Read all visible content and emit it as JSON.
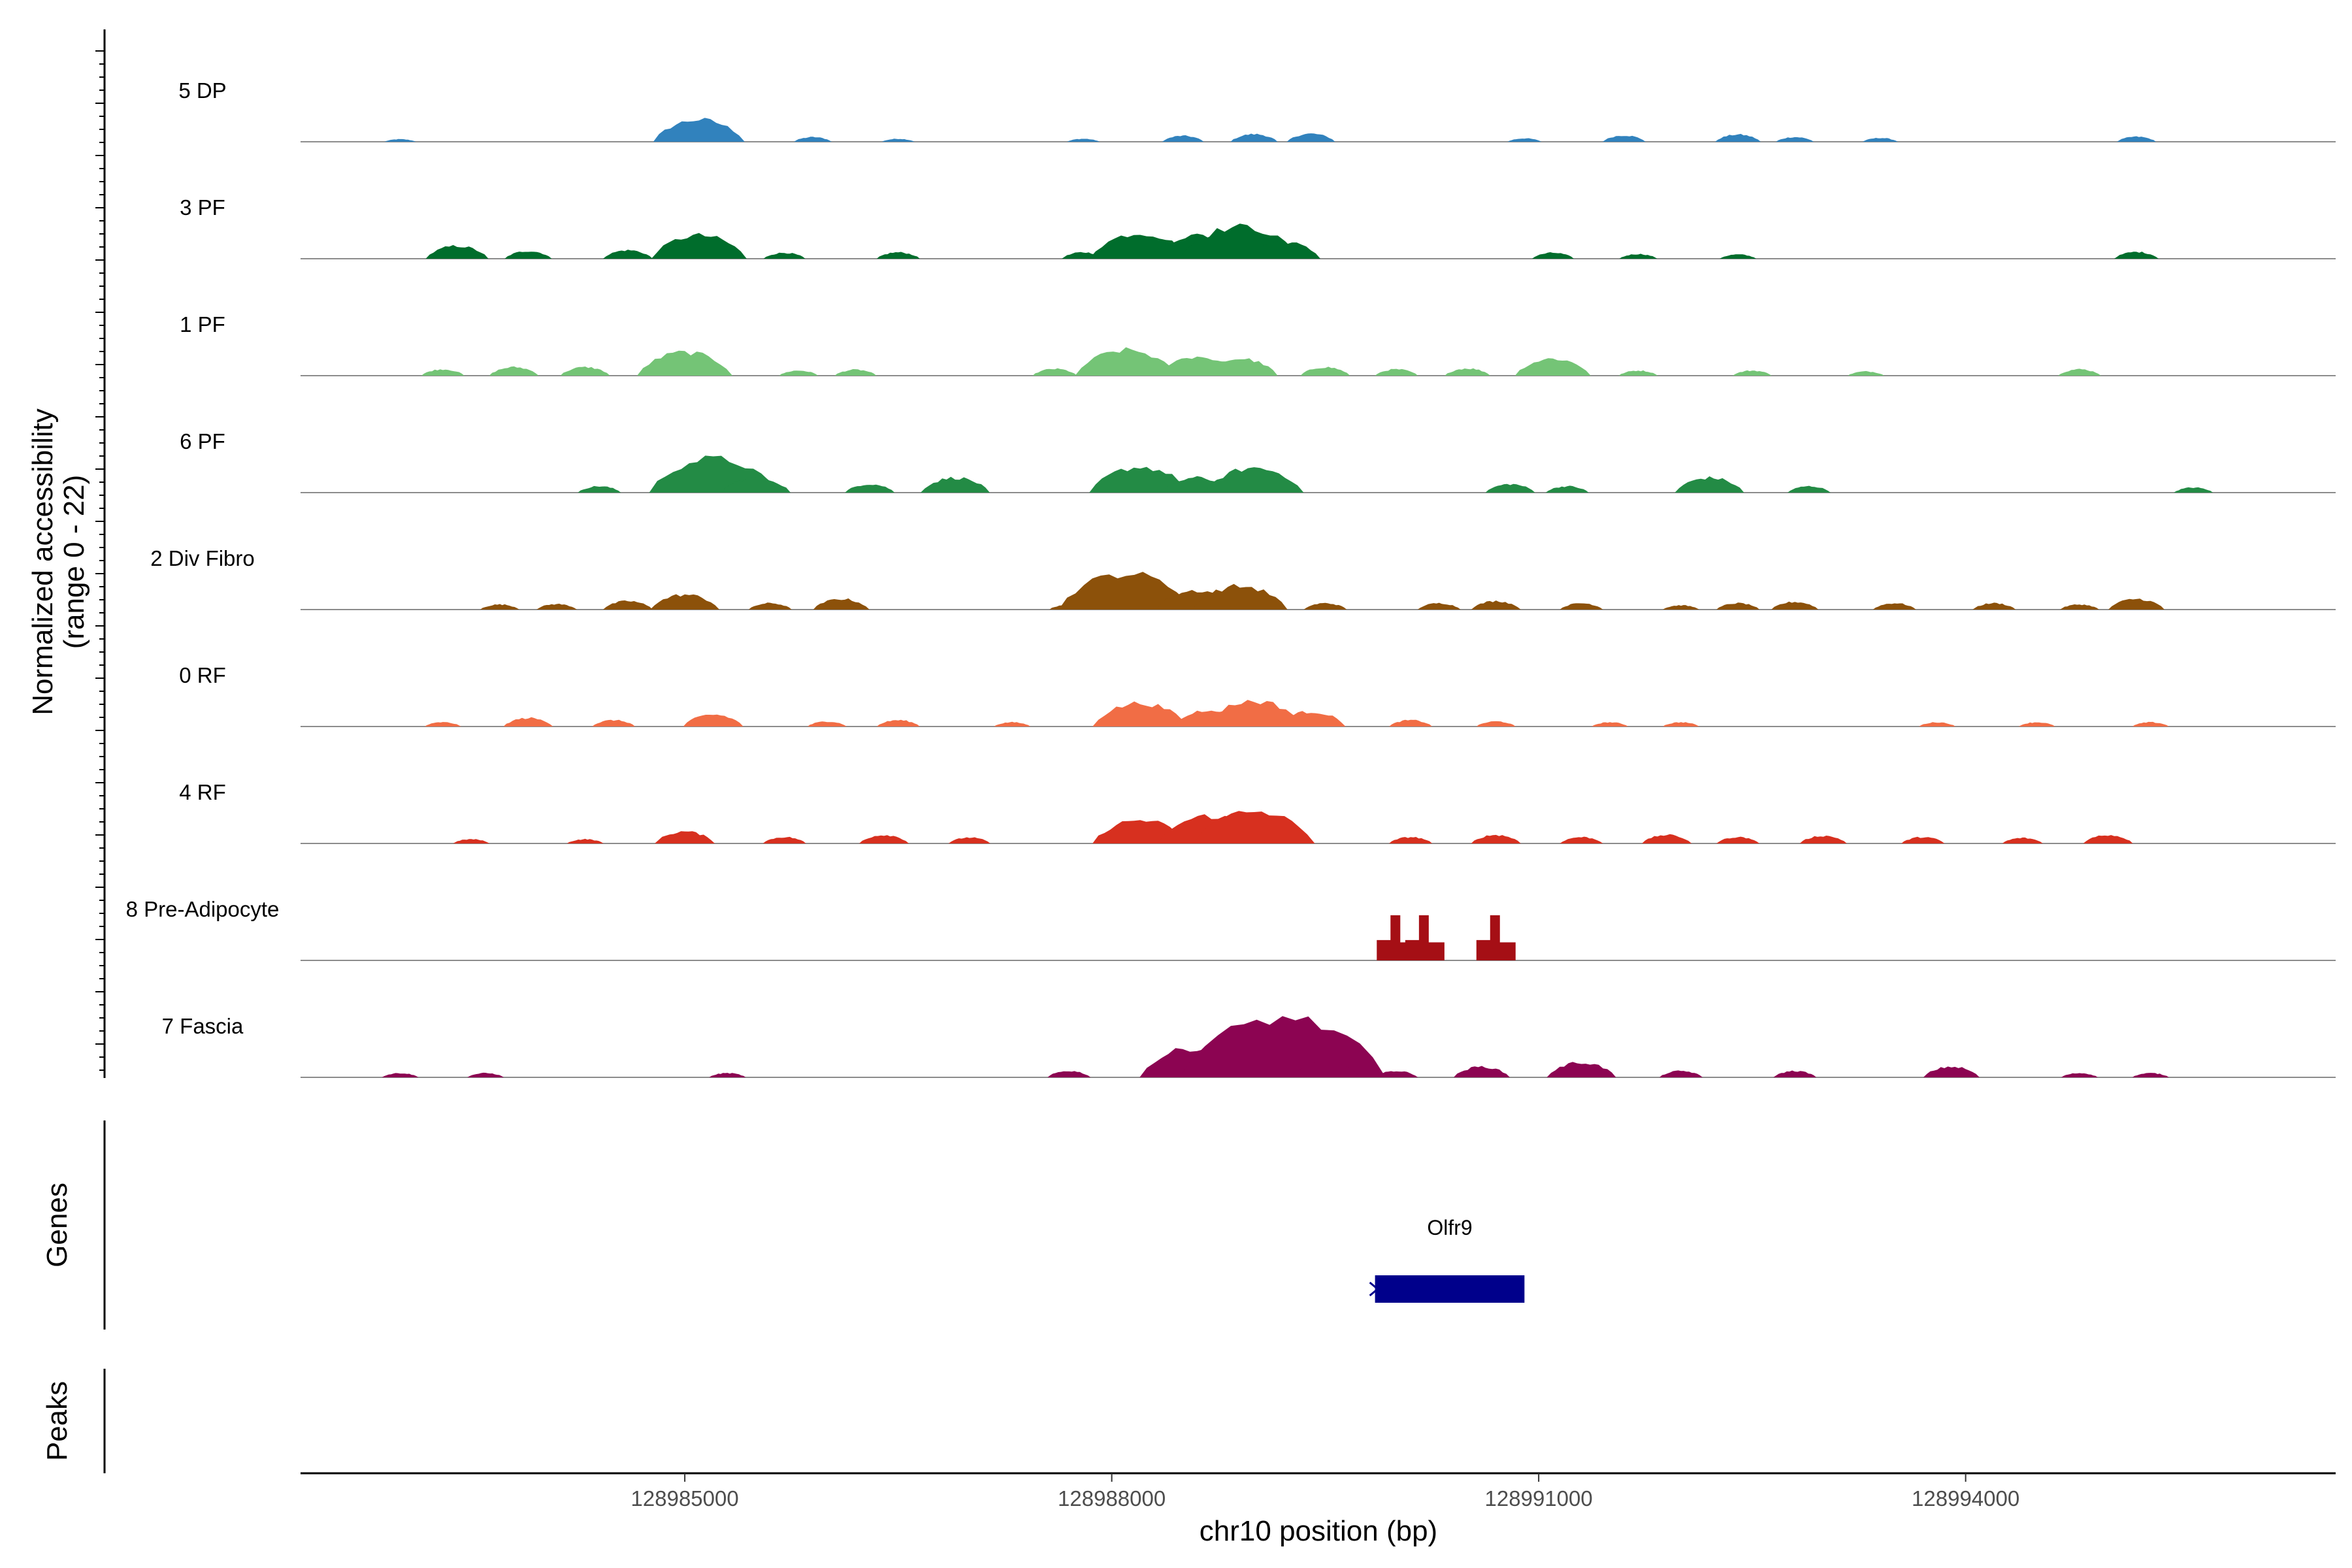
{
  "chart_data": {
    "type": "area",
    "title": "",
    "ylabel": "Normalized accessibility",
    "ylabel_range": "(range 0 - 22)",
    "xlabel": "chr10 position (bp)",
    "ylim": [
      0,
      22
    ],
    "xlim": [
      128982300,
      128996600
    ],
    "x_ticks": [
      128985000,
      128988000,
      128991000,
      128994000
    ],
    "x_tick_labels": [
      "128985000",
      "128988000",
      "128991000",
      "128994000"
    ],
    "series": [
      {
        "name": "5 DP",
        "color": "#3182bd",
        "peaks": [
          [
            128983000,
            0.6
          ],
          [
            128985100,
            5.2
          ],
          [
            128985900,
            1.1
          ],
          [
            128986500,
            0.7
          ],
          [
            128987800,
            0.7
          ],
          [
            128988500,
            1.4
          ],
          [
            128989000,
            1.8
          ],
          [
            128989400,
            1.9
          ],
          [
            128990900,
            0.8
          ],
          [
            128991600,
            1.5
          ],
          [
            128992400,
            1.7
          ],
          [
            128992800,
            1.1
          ],
          [
            128993400,
            0.9
          ],
          [
            128995200,
            1.2
          ]
        ]
      },
      {
        "name": "3 PF",
        "color": "#006d2c",
        "peaks": [
          [
            128983400,
            3.0
          ],
          [
            128983900,
            1.8
          ],
          [
            128984600,
            2.0
          ],
          [
            128985100,
            5.5
          ],
          [
            128985700,
            1.4
          ],
          [
            128986500,
            1.5
          ],
          [
            128987800,
            1.5
          ],
          [
            128988200,
            6.0
          ],
          [
            128988600,
            5.5
          ],
          [
            128988900,
            7.5
          ],
          [
            128989200,
            4.0
          ],
          [
            128991100,
            1.4
          ],
          [
            128991700,
            1.1
          ],
          [
            128992400,
            1.0
          ],
          [
            128995200,
            1.6
          ]
        ]
      },
      {
        "name": "1 PF",
        "color": "#74c476",
        "peaks": [
          [
            128983300,
            1.5
          ],
          [
            128983800,
            2.0
          ],
          [
            128984300,
            2.0
          ],
          [
            128985000,
            5.5
          ],
          [
            128985800,
            1.2
          ],
          [
            128986200,
            1.4
          ],
          [
            128987600,
            1.6
          ],
          [
            128988100,
            6.0
          ],
          [
            128988600,
            4.5
          ],
          [
            128988900,
            4.0
          ],
          [
            128989500,
            2.0
          ],
          [
            128990000,
            1.5
          ],
          [
            128990500,
            1.7
          ],
          [
            128991100,
            4.0
          ],
          [
            128991700,
            1.2
          ],
          [
            128992500,
            1.2
          ],
          [
            128993300,
            1.0
          ],
          [
            128994800,
            1.5
          ]
        ]
      },
      {
        "name": "6 PF",
        "color": "#238b45",
        "peaks": [
          [
            128984400,
            1.5
          ],
          [
            128984900,
            1.5
          ],
          [
            128985200,
            8.0
          ],
          [
            128985500,
            3.5
          ],
          [
            128986300,
            2.0
          ],
          [
            128986900,
            3.5
          ],
          [
            128988200,
            6.0
          ],
          [
            128988600,
            3.5
          ],
          [
            128989000,
            5.8
          ],
          [
            128990800,
            2.0
          ],
          [
            128991200,
            1.5
          ],
          [
            128992200,
            3.5
          ],
          [
            128992900,
            1.5
          ],
          [
            128995600,
            1.2
          ]
        ]
      },
      {
        "name": "2 Div Fibro",
        "color": "#8c510a",
        "peaks": [
          [
            128983700,
            1.2
          ],
          [
            128984100,
            1.3
          ],
          [
            128984600,
            2.0
          ],
          [
            128985000,
            3.5
          ],
          [
            128985600,
            1.5
          ],
          [
            128986100,
            2.5
          ],
          [
            128987700,
            1.2
          ],
          [
            128988100,
            8.5
          ],
          [
            128988600,
            4.5
          ],
          [
            128988900,
            5.5
          ],
          [
            128989500,
            1.5
          ],
          [
            128990300,
            1.5
          ],
          [
            128990700,
            2.0
          ],
          [
            128991300,
            1.5
          ],
          [
            128992000,
            1.0
          ],
          [
            128992400,
            1.5
          ],
          [
            128992800,
            1.8
          ],
          [
            128993500,
            1.5
          ],
          [
            128994200,
            1.5
          ],
          [
            128994800,
            1.2
          ],
          [
            128995200,
            2.5
          ]
        ]
      },
      {
        "name": "0 RF",
        "color": "#f16d45",
        "peaks": [
          [
            128983300,
            1.0
          ],
          [
            128983900,
            2.0
          ],
          [
            128984500,
            1.5
          ],
          [
            128985200,
            2.8
          ],
          [
            128986000,
            1.2
          ],
          [
            128986500,
            1.5
          ],
          [
            128987300,
            1.0
          ],
          [
            128988200,
            5.5
          ],
          [
            128988700,
            4.0
          ],
          [
            128989000,
            6.0
          ],
          [
            128989400,
            3.5
          ],
          [
            128990100,
            1.5
          ],
          [
            128990700,
            1.2
          ],
          [
            128991500,
            1.0
          ],
          [
            128992000,
            1.0
          ],
          [
            128993800,
            1.0
          ],
          [
            128994500,
            1.0
          ],
          [
            128995300,
            1.0
          ]
        ]
      },
      {
        "name": "4 RF",
        "color": "#d7301f",
        "peaks": [
          [
            128983500,
            1.0
          ],
          [
            128984300,
            1.0
          ],
          [
            128985000,
            2.8
          ],
          [
            128985700,
            1.5
          ],
          [
            128986400,
            2.0
          ],
          [
            128987000,
            1.4
          ],
          [
            128988200,
            5.5
          ],
          [
            128988700,
            6.5
          ],
          [
            128989000,
            7.5
          ],
          [
            128990100,
            1.5
          ],
          [
            128990700,
            2.0
          ],
          [
            128991300,
            1.5
          ],
          [
            128991900,
            2.0
          ],
          [
            128992400,
            1.5
          ],
          [
            128993000,
            1.8
          ],
          [
            128993700,
            1.5
          ],
          [
            128994400,
            1.3
          ],
          [
            128995000,
            2.0
          ]
        ]
      },
      {
        "name": "8 Pre-Adipocyte",
        "color": "#a50f15",
        "peaks": [
          [
            128990000,
            9.5
          ],
          [
            128990200,
            9.5
          ],
          [
            128990700,
            9.5
          ]
        ]
      },
      {
        "name": "7 Fascia",
        "color": "#8c0452",
        "peaks": [
          [
            128983000,
            1.0
          ],
          [
            128983600,
            1.0
          ],
          [
            128985300,
            1.0
          ],
          [
            128987700,
            1.5
          ],
          [
            128988600,
            7.0
          ],
          [
            128989200,
            14.0
          ],
          [
            128989500,
            3.5
          ],
          [
            128990000,
            1.5
          ],
          [
            128990600,
            2.5
          ],
          [
            128991300,
            3.5
          ],
          [
            128992000,
            1.5
          ],
          [
            128992800,
            1.5
          ],
          [
            128993900,
            2.5
          ],
          [
            128994800,
            1.0
          ],
          [
            128995300,
            1.0
          ]
        ]
      }
    ],
    "genes": [
      {
        "name": "Olfr9",
        "start": 128989850,
        "end": 128990900,
        "strand": "-"
      }
    ],
    "panels": [
      "Genes",
      "Peaks"
    ]
  }
}
